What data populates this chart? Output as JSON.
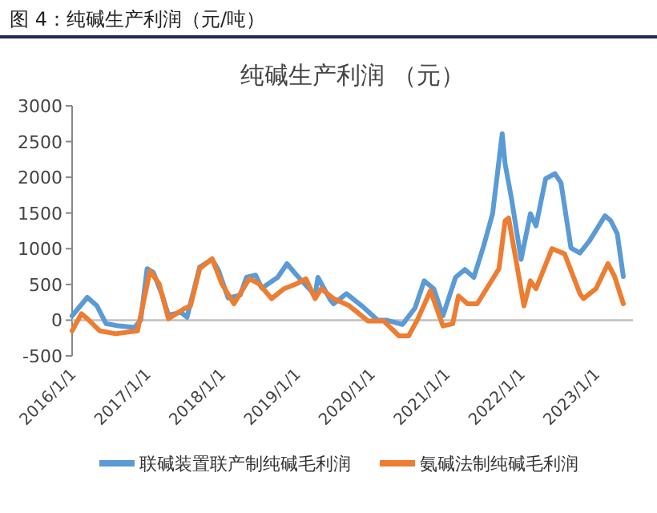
{
  "chart_data": {
    "type": "line",
    "title": "图 4：纯碱生产利润（元/吨）",
    "subtitle": "纯碱生产利润 （元）",
    "xlim": [
      "2016-01-01",
      "2023-07-01"
    ],
    "xticks": [
      {
        "value": "2016-01-01",
        "label": "2016/1/1"
      },
      {
        "value": "2017-01-01",
        "label": "2017/1/1"
      },
      {
        "value": "2018-01-01",
        "label": "2018/1/1"
      },
      {
        "value": "2019-01-01",
        "label": "2019/1/1"
      },
      {
        "value": "2020-01-01",
        "label": "2020/1/1"
      },
      {
        "value": "2021-01-01",
        "label": "2021/1/1"
      },
      {
        "value": "2022-01-01",
        "label": "2022/1/1"
      },
      {
        "value": "2023-01-01",
        "label": "2023/1/1"
      }
    ],
    "ylim": [
      -500,
      3000
    ],
    "yticks": [
      -500,
      0,
      500,
      1000,
      1500,
      2000,
      2500,
      3000
    ],
    "ref_lines": [
      {
        "axis": "y",
        "value": 0,
        "color": "#bfbfbf"
      }
    ],
    "grid": false,
    "legend": "bottom",
    "marker": "none",
    "line_style": "solid",
    "series": [
      {
        "name": "联碱装置联产制纯碱毛利润",
        "color": "#5b9bd5",
        "x": [
          "2016-01-01",
          "2016-03-15",
          "2016-05-01",
          "2016-06-15",
          "2016-08-15",
          "2016-11-01",
          "2016-12-01",
          "2017-01-01",
          "2017-02-01",
          "2017-03-15",
          "2017-04-15",
          "2017-06-15",
          "2017-07-15",
          "2017-09-15",
          "2017-11-15",
          "2017-12-15",
          "2018-02-01",
          "2018-04-01",
          "2018-05-01",
          "2018-06-15",
          "2018-07-15",
          "2018-10-01",
          "2018-11-15",
          "2019-01-01",
          "2019-04-01",
          "2019-04-15",
          "2019-06-15",
          "2019-07-01",
          "2019-09-01",
          "2019-11-15",
          "2020-02-01",
          "2020-03-15",
          "2020-06-01",
          "2020-08-01",
          "2020-09-15",
          "2020-11-01",
          "2020-12-15",
          "2021-02-15",
          "2021-04-01",
          "2021-05-15",
          "2021-07-01",
          "2021-08-15",
          "2021-10-01",
          "2021-10-15",
          "2021-11-15",
          "2022-01-01",
          "2022-02-15",
          "2022-03-15",
          "2022-05-01",
          "2022-06-15",
          "2022-07-15",
          "2022-09-01",
          "2022-10-15",
          "2022-12-01",
          "2023-02-15",
          "2023-03-15",
          "2023-04-15",
          "2023-05-15"
        ],
        "values": [
          60,
          320,
          200,
          -50,
          -80,
          -100,
          0,
          720,
          670,
          360,
          70,
          110,
          40,
          740,
          850,
          700,
          310,
          350,
          600,
          630,
          450,
          600,
          790,
          630,
          350,
          600,
          280,
          230,
          370,
          200,
          0,
          0,
          -60,
          170,
          550,
          440,
          60,
          600,
          710,
          600,
          1030,
          1490,
          2610,
          2190,
          1700,
          850,
          1490,
          1320,
          1980,
          2050,
          1920,
          1010,
          940,
          1110,
          1460,
          1390,
          1210,
          610
        ]
      },
      {
        "name": "氨碱法制纯碱毛利润",
        "color": "#ed7d31",
        "x": [
          "2016-01-01",
          "2016-02-15",
          "2016-03-15",
          "2016-05-15",
          "2016-08-01",
          "2016-11-15",
          "2017-01-15",
          "2017-03-01",
          "2017-04-15",
          "2017-07-01",
          "2017-08-01",
          "2017-09-15",
          "2017-11-15",
          "2018-01-01",
          "2018-03-01",
          "2018-05-15",
          "2018-07-01",
          "2018-09-01",
          "2018-11-01",
          "2019-01-01",
          "2019-02-15",
          "2019-04-01",
          "2019-05-01",
          "2019-07-01",
          "2019-09-15",
          "2019-12-15",
          "2020-03-01",
          "2020-05-15",
          "2020-07-01",
          "2020-08-15",
          "2020-10-15",
          "2020-12-15",
          "2021-02-01",
          "2021-03-01",
          "2021-04-15",
          "2021-06-01",
          "2021-08-01",
          "2021-09-15",
          "2021-10-15",
          "2021-11-01",
          "2022-01-15",
          "2022-02-15",
          "2022-03-15",
          "2022-06-01",
          "2022-08-01",
          "2022-10-15",
          "2022-11-01",
          "2023-01-01",
          "2023-03-01",
          "2023-04-01",
          "2023-05-15"
        ],
        "values": [
          -150,
          90,
          20,
          -150,
          -190,
          -150,
          690,
          510,
          20,
          160,
          200,
          720,
          860,
          510,
          230,
          580,
          510,
          300,
          440,
          510,
          580,
          300,
          440,
          300,
          200,
          -10,
          -10,
          -220,
          -220,
          20,
          410,
          -80,
          -50,
          340,
          230,
          230,
          510,
          720,
          1390,
          1430,
          200,
          550,
          440,
          1000,
          930,
          370,
          300,
          440,
          790,
          620,
          230
        ]
      }
    ]
  }
}
